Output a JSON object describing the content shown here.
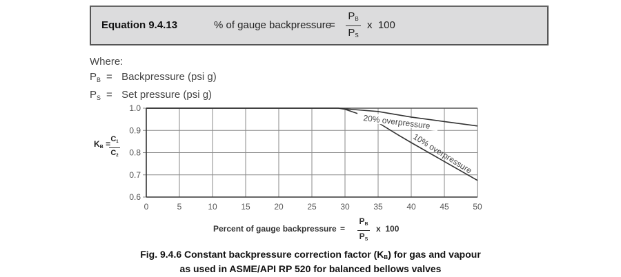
{
  "equation": {
    "label": "Equation 9.4.13",
    "lhs": "% of gauge backpressure",
    "equals": "=",
    "numerator": "P",
    "numerator_sub": "B",
    "denominator": "P",
    "denominator_sub": "S",
    "multiplier": "x  100"
  },
  "where": {
    "heading": "Where:",
    "items": [
      {
        "symbol": "P",
        "sub": "B",
        "equals": "=",
        "desc": "Backpressure (psi g)"
      },
      {
        "symbol": "P",
        "sub": "S",
        "equals": "=",
        "desc": "Set pressure (psi g)"
      }
    ]
  },
  "ylabel": {
    "lhs": "K",
    "lhs_sub": "B",
    "equals": "=",
    "numerator": "C",
    "numerator_sub": "1",
    "denominator": "C",
    "denominator_sub": "2"
  },
  "xlabel": {
    "text": "Percent of gauge backpressure",
    "equals": "=",
    "numerator": "P",
    "numerator_sub": "B",
    "denominator": "P",
    "denominator_sub": "S",
    "multiplier": "x  100"
  },
  "caption": {
    "line1_pre": "Fig. 9.4.6  Constant backpressure correction factor (K",
    "line1_sub": "B",
    "line1_post": ") for gas and vapour",
    "line2": "as used in ASME/API RP 520 for balanced bellows valves"
  },
  "chart_data": {
    "type": "line",
    "title": "Fig. 9.4.6 Constant backpressure correction factor (KB) for gas and vapour as used in ASME/API RP 520 for balanced bellows valves",
    "xlabel": "Percent of gauge backpressure = PB/PS x 100",
    "ylabel": "KB = C1/C2",
    "xlim": [
      0,
      50
    ],
    "ylim": [
      0.6,
      1.0
    ],
    "xticks": [
      0,
      5,
      10,
      15,
      20,
      25,
      30,
      35,
      40,
      45,
      50
    ],
    "yticks": [
      0.6,
      0.7,
      0.8,
      0.9,
      1.0
    ],
    "xtick_labels": [
      "0",
      "5",
      "10",
      "15",
      "20",
      "25",
      "30",
      "35",
      "40",
      "45",
      "50"
    ],
    "ytick_labels": [
      "0.6",
      "0.7",
      "0.8",
      "0.9",
      "1.0"
    ],
    "grid": true,
    "series": [
      {
        "name": "20% overpressure",
        "x": [
          0,
          29,
          30,
          35,
          40,
          45,
          50
        ],
        "y": [
          1.0,
          1.0,
          0.997,
          0.985,
          0.96,
          0.94,
          0.92
        ]
      },
      {
        "name": "10% overpressure",
        "x": [
          0,
          29,
          30,
          32,
          35,
          38,
          40,
          45,
          50
        ],
        "y": [
          1.0,
          1.0,
          0.995,
          0.975,
          0.935,
          0.88,
          0.845,
          0.76,
          0.675
        ]
      }
    ],
    "annotations": [
      "20% overpressure",
      "10% overpressure"
    ]
  }
}
